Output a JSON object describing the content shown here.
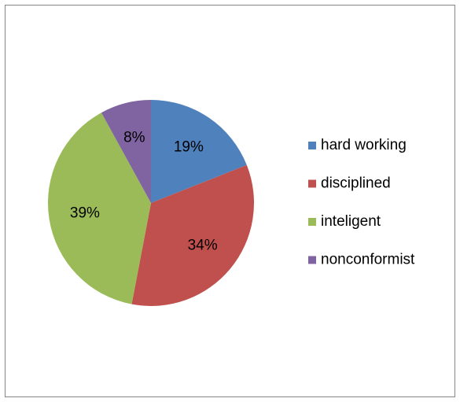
{
  "chart_data": {
    "type": "pie",
    "categories": [
      "hard working",
      "disciplined",
      "inteligent",
      "nonconformist"
    ],
    "values": [
      19,
      34,
      39,
      8
    ],
    "value_labels": [
      "19%",
      "34%",
      "39%",
      "8%"
    ],
    "colors": [
      "#4f81bd",
      "#c0504d",
      "#9bbb59",
      "#8064a2"
    ],
    "legend": "right"
  }
}
